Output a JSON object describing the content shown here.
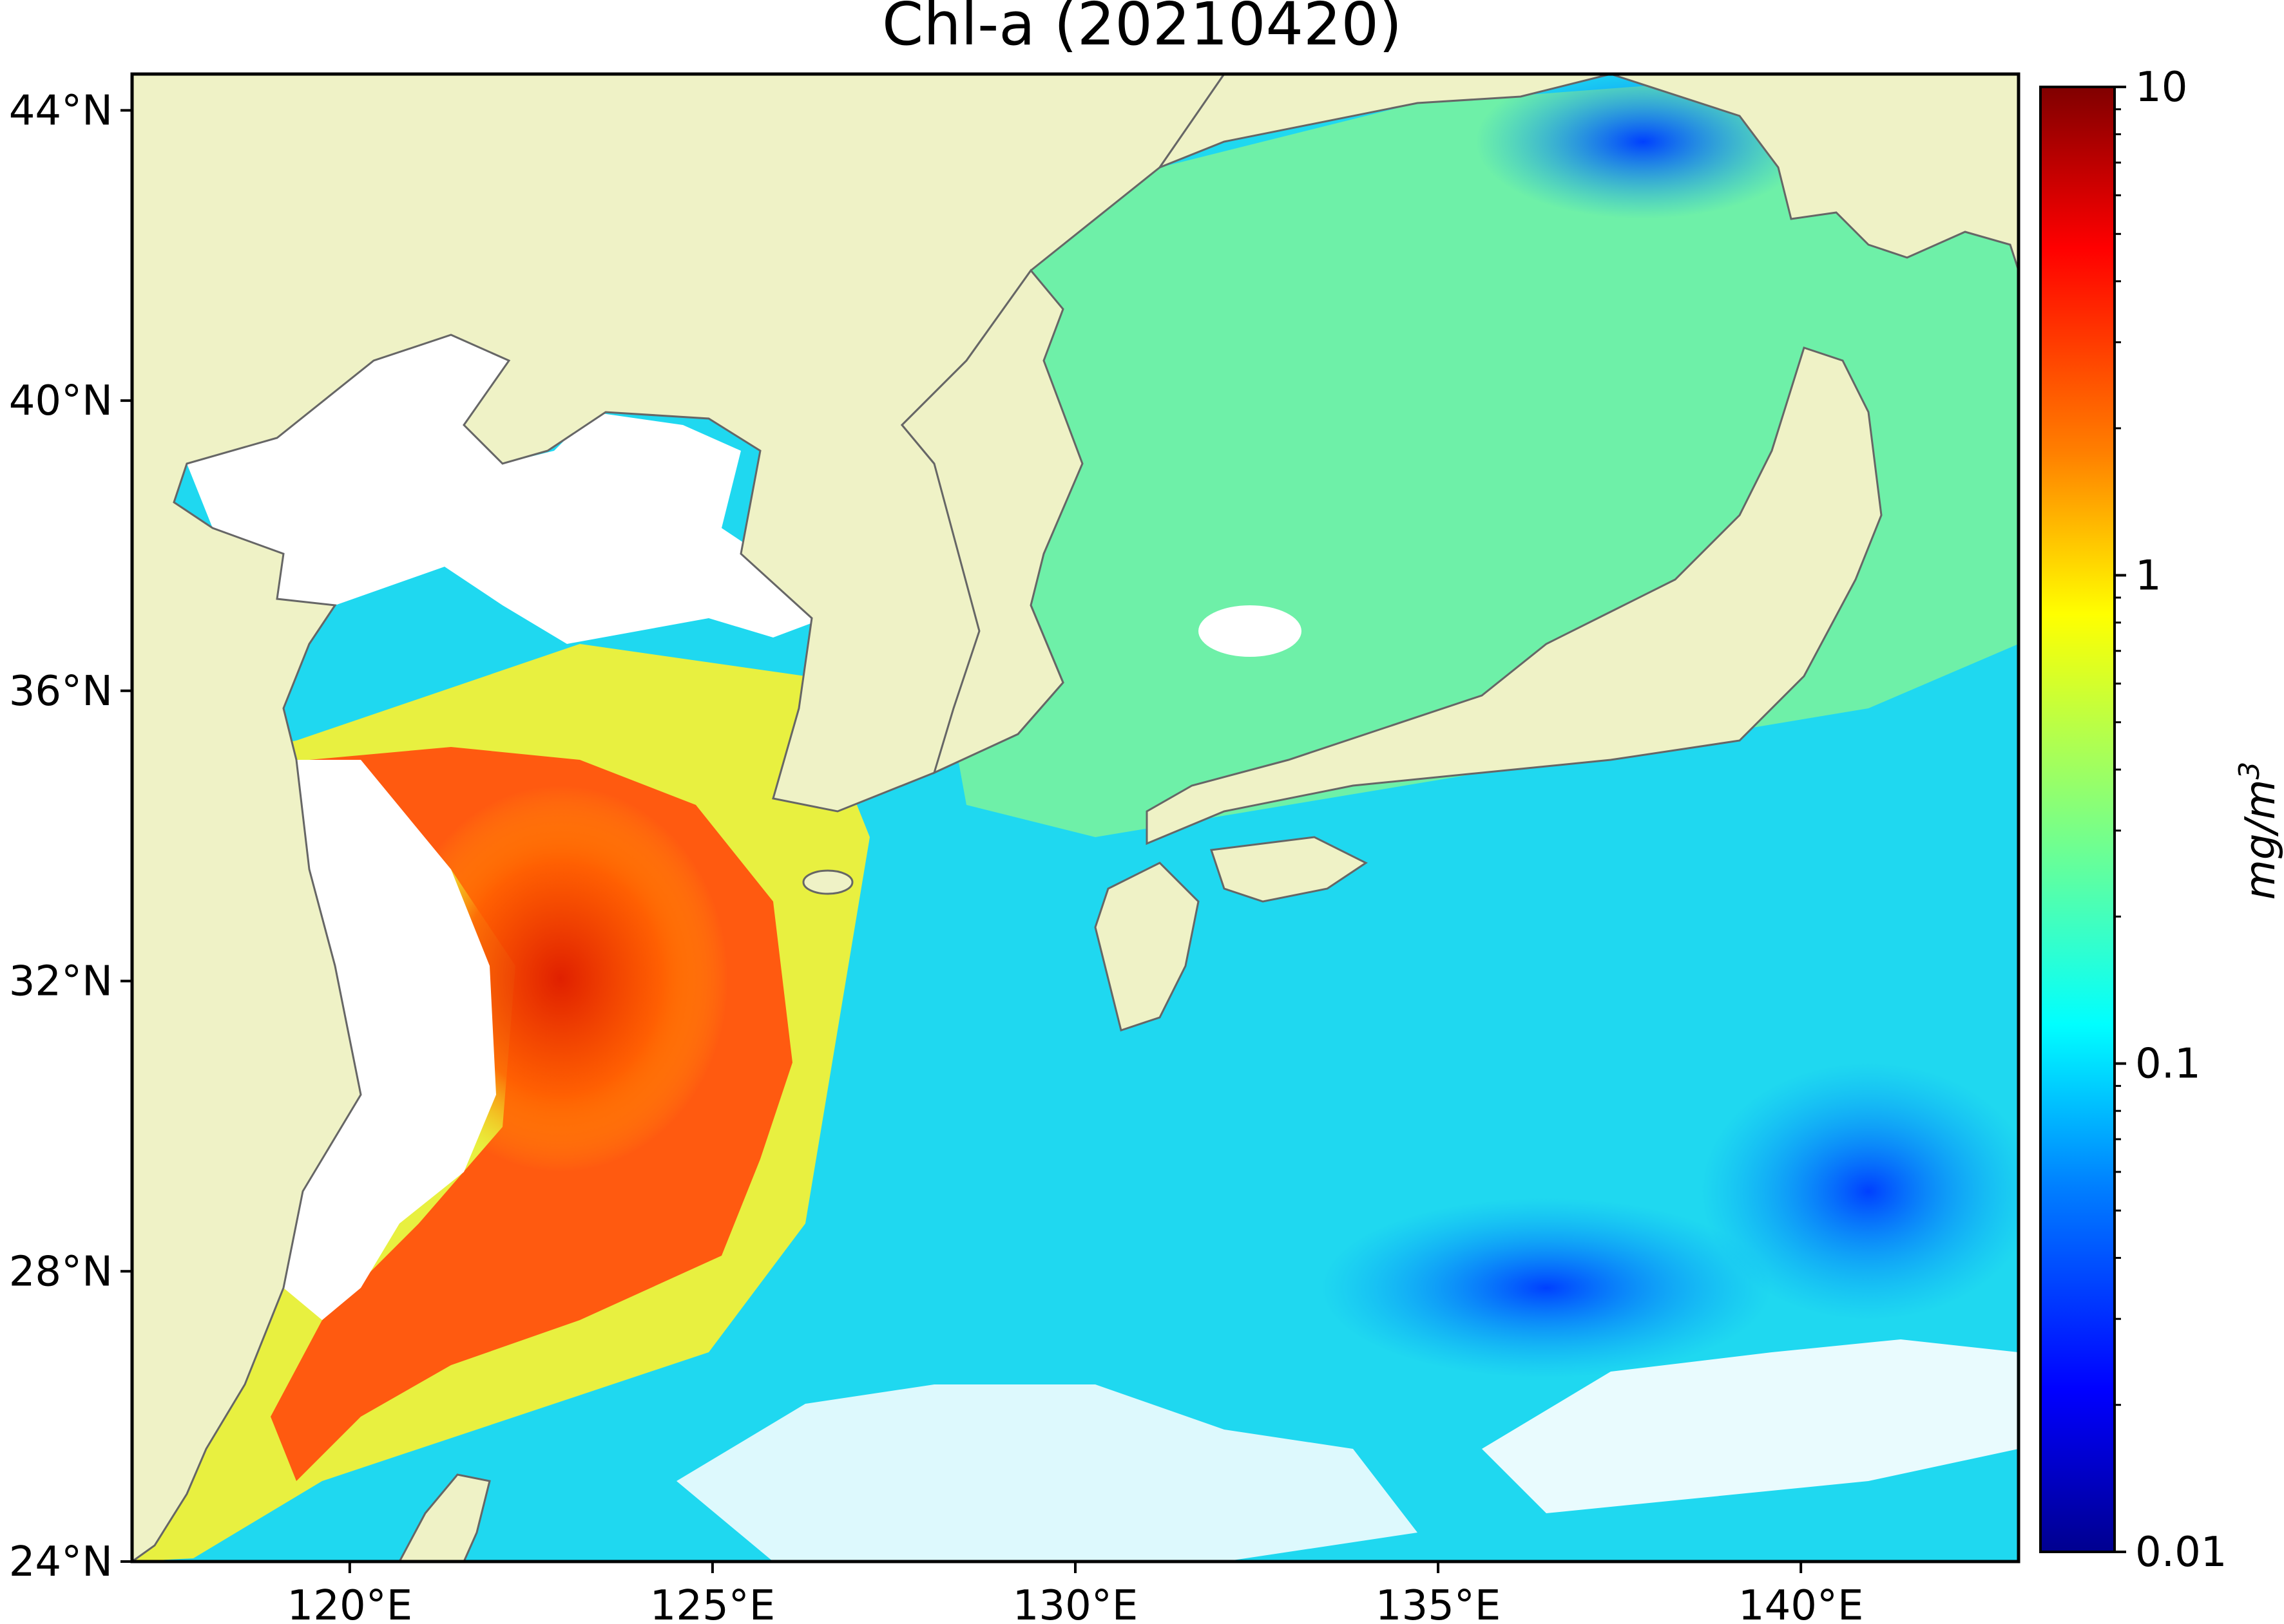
{
  "title": "Chl-a (20210420)",
  "map": {
    "lon_range": [
      117,
      143
    ],
    "lat_range": [
      24,
      44.5
    ],
    "lon_ticks": [
      {
        "value": 120,
        "label": "120°E"
      },
      {
        "value": 125,
        "label": "125°E"
      },
      {
        "value": 130,
        "label": "130°E"
      },
      {
        "value": 135,
        "label": "135°E"
      },
      {
        "value": 140,
        "label": "140°E"
      }
    ],
    "lat_ticks": [
      {
        "value": 24,
        "label": "24°N"
      },
      {
        "value": 28,
        "label": "28°N"
      },
      {
        "value": 32,
        "label": "32°N"
      },
      {
        "value": 36,
        "label": "36°N"
      },
      {
        "value": 40,
        "label": "40°N"
      },
      {
        "value": 44,
        "label": "44°N"
      }
    ],
    "land_color": "#eff2c6",
    "coast_color": "#666666",
    "no_data_color": "#ffffff"
  },
  "colorbar": {
    "label_prefix": "mg/m",
    "label_sup": "3",
    "scale": "log",
    "range": [
      0.01,
      10
    ],
    "ticks": [
      {
        "value": 10,
        "label": "10"
      },
      {
        "value": 1,
        "label": "1"
      },
      {
        "value": 0.1,
        "label": "0.1"
      },
      {
        "value": 0.01,
        "label": "0.01"
      }
    ],
    "colormap": "jet",
    "colors": [
      "#00008f",
      "#0000ff",
      "#0080ff",
      "#00ffff",
      "#80ff80",
      "#ffff00",
      "#ff8000",
      "#ff0000",
      "#800000"
    ]
  }
}
